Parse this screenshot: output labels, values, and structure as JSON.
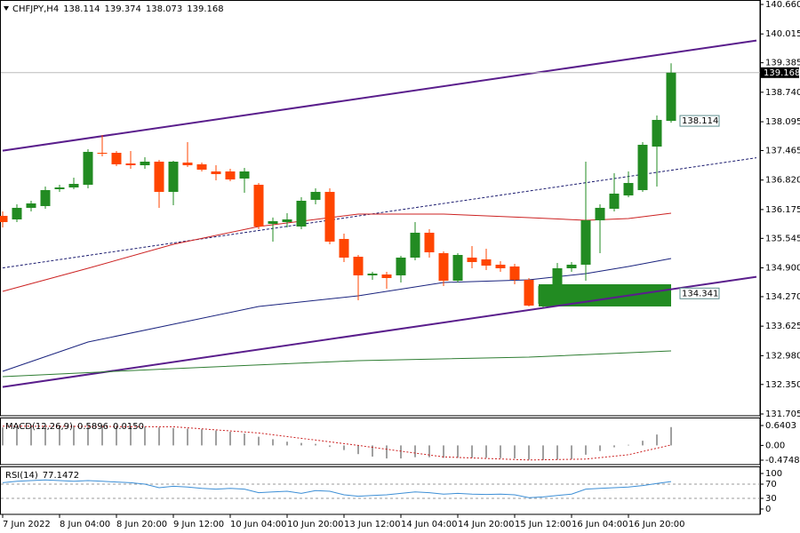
{
  "chart_data": [
    {
      "type": "candlestick",
      "title": "CHFJPY,H4",
      "categories": [
        "7 Jun 2022",
        null,
        null,
        null,
        "8 Jun 04:00",
        null,
        null,
        null,
        "8 Jun 20:00",
        null,
        null,
        null,
        "9 Jun 12:00",
        null,
        null,
        null,
        "10 Jun 04:00",
        null,
        null,
        null,
        "10 Jun 20:00",
        null,
        null,
        null,
        "13 Jun 12:00",
        null,
        null,
        null,
        "14 Jun 04:00",
        null,
        null,
        null,
        "14 Jun 20:00",
        null,
        null,
        null,
        "15 Jun 12:00",
        null,
        null,
        null,
        "16 Jun 04:00",
        null,
        null,
        null,
        "16 Jun 20:00",
        null,
        null,
        null
      ],
      "open": [
        136.037,
        135.959,
        136.212,
        136.251,
        136.62,
        136.658,
        136.717,
        137.416,
        137.416,
        137.183,
        137.144,
        137.222,
        136.561,
        137.202,
        137.164,
        137.008,
        137.008,
        136.853,
        136.717,
        135.862,
        135.901,
        135.804,
        136.387,
        136.561,
        135.532,
        135.143,
        134.736,
        134.755,
        134.736,
        135.124,
        135.668,
        135.221,
        134.619,
        135.124,
        135.085,
        134.969,
        134.93,
        134.638,
        134.114,
        134.541,
        134.891,
        134.969,
        135.94,
        136.192,
        136.484,
        136.6,
        137.552,
        138.114
      ],
      "high": [
        136.134,
        136.289,
        136.367,
        136.678,
        136.717,
        136.872,
        137.494,
        137.805,
        137.455,
        137.455,
        137.319,
        137.261,
        137.241,
        137.649,
        137.202,
        137.144,
        137.067,
        137.086,
        136.756,
        136.0,
        136.095,
        136.445,
        136.639,
        136.639,
        135.649,
        135.182,
        134.813,
        134.813,
        135.163,
        135.901,
        135.745,
        135.26,
        135.221,
        135.376,
        135.318,
        135.047,
        134.988,
        134.677,
        134.541,
        135.008,
        135.027,
        137.222,
        136.289,
        136.969,
        137.008,
        137.649,
        138.232,
        139.374
      ],
      "low": [
        135.784,
        135.901,
        136.134,
        136.192,
        136.561,
        136.62,
        136.639,
        137.338,
        137.125,
        137.067,
        137.067,
        136.212,
        136.27,
        137.105,
        137.008,
        136.814,
        136.795,
        136.542,
        135.745,
        135.474,
        135.784,
        135.745,
        136.289,
        135.415,
        135.027,
        134.192,
        134.638,
        134.444,
        134.58,
        135.066,
        135.124,
        134.502,
        134.58,
        134.891,
        134.852,
        134.813,
        134.541,
        134.056,
        134.036,
        134.444,
        134.813,
        134.619,
        135.221,
        136.134,
        136.445,
        136.561,
        136.678,
        138.073
      ],
      "close": [
        135.901,
        136.212,
        136.309,
        136.6,
        136.658,
        136.736,
        137.436,
        137.397,
        137.164,
        137.144,
        137.222,
        136.561,
        137.222,
        137.144,
        137.047,
        136.95,
        136.833,
        137.008,
        135.804,
        135.92,
        135.959,
        136.367,
        136.561,
        135.474,
        135.124,
        134.736,
        134.774,
        134.677,
        135.124,
        135.668,
        135.24,
        134.619,
        135.182,
        135.027,
        134.949,
        134.891,
        134.638,
        134.075,
        134.502,
        134.891,
        134.969,
        135.94,
        136.212,
        136.523,
        136.756,
        137.591,
        138.135,
        139.168
      ],
      "up_color": "#228b22",
      "down_color": "#ff4500",
      "ylim": [
        131.705,
        140.66
      ],
      "yticks": [
        {
          "value": 140.66,
          "label": "140.660"
        },
        140.015,
        139.385,
        {
          "value": 138.74,
          "label": "138.740"
        },
        138.095,
        137.465,
        {
          "value": 136.82,
          "label": "136.820"
        },
        136.175,
        135.545,
        {
          "value": 134.9,
          "label": "134.900"
        },
        {
          "value": 134.27,
          "label": "134.270"
        },
        133.625,
        {
          "value": 132.98,
          "label": "132.980"
        },
        {
          "value": 132.35,
          "label": "132.350"
        },
        131.705
      ],
      "grid": false,
      "overlays": [
        {
          "x": [
            0,
            53
          ],
          "values": [
            137.463,
            139.871
          ],
          "color": "#5a1e8c",
          "dash": false
        },
        {
          "x": [
            0,
            53
          ],
          "values": [
            132.296,
            134.704
          ],
          "color": "#5a1e8c",
          "dash": false
        },
        {
          "x": [
            0,
            53
          ],
          "values": [
            134.899,
            137.307
          ],
          "color": "#1a1a6e",
          "dash": true
        },
        {
          "x": [
            0,
            6,
            12,
            18,
            25,
            31,
            37,
            41,
            44,
            47
          ],
          "values": [
            134.386,
            134.891,
            135.415,
            135.804,
            136.076,
            136.076,
            135.998,
            135.94,
            135.979,
            136.095
          ],
          "color": "#cc2222",
          "dash": false
        },
        {
          "x": [
            0,
            6,
            12,
            18,
            25,
            31,
            37,
            41,
            44,
            47
          ],
          "values": [
            132.637,
            133.278,
            133.667,
            134.055,
            134.289,
            134.58,
            134.638,
            134.774,
            134.93,
            135.104
          ],
          "color": "#1a237e",
          "dash": false
        },
        {
          "x": [
            0,
            12,
            25,
            37,
            47
          ],
          "values": [
            132.521,
            132.696,
            132.871,
            132.948,
            133.084
          ],
          "color": "#2e7d32",
          "dash": false
        }
      ],
      "rectangles": [
        {
          "x": [
            38,
            47
          ],
          "values": [
            134.056,
            134.541
          ],
          "color": "#228b22"
        }
      ],
      "price_labels": [
        138.114,
        134.341
      ]
    },
    {
      "type": "macd",
      "title": "MACD(12,26,9)",
      "values": [
        0.58,
        0.6,
        0.62,
        0.63,
        0.64,
        0.64,
        0.62,
        0.63,
        0.63,
        0.62,
        0.6,
        0.58,
        0.56,
        0.54,
        0.52,
        0.48,
        0.44,
        0.38,
        0.28,
        0.2,
        0.12,
        0.08,
        0.05,
        -0.05,
        -0.15,
        -0.28,
        -0.36,
        -0.42,
        -0.42,
        -0.38,
        -0.38,
        -0.4,
        -0.4,
        -0.4,
        -0.4,
        -0.41,
        -0.42,
        -0.46,
        -0.47,
        -0.46,
        -0.44,
        -0.3,
        -0.18,
        -0.06,
        0.02,
        0.15,
        0.35,
        0.5896
      ],
      "color": "#a0a0a0",
      "signal": {
        "x": [
          0,
          12,
          18,
          25,
          31,
          37,
          41,
          44,
          47
        ],
        "values": [
          0.62,
          0.6,
          0.4,
          0,
          -0.37,
          -0.47,
          -0.44,
          -0.3,
          0.015
        ],
        "value_labels": [
          null,
          null,
          null,
          null,
          null,
          null,
          null,
          null,
          "0.0150"
        ],
        "color": "#cc2222"
      },
      "ylim": [
        -0.4748,
        0.6403
      ],
      "yticks": [
        0.6403,
        {
          "value": 0,
          "label": "0.00"
        },
        -0.4748
      ],
      "grid": false
    },
    {
      "type": "line",
      "title": "RSI(14)",
      "values": [
        74,
        78,
        80,
        82,
        80,
        78,
        80,
        78,
        76,
        74,
        70,
        60,
        64,
        62,
        58,
        56,
        58,
        56,
        46,
        48,
        50,
        44,
        52,
        50,
        40,
        36,
        38,
        40,
        44,
        48,
        46,
        42,
        44,
        42,
        41,
        42,
        40,
        32,
        34,
        38,
        42,
        56,
        58,
        60,
        62,
        66,
        72,
        77.1472
      ],
      "color": "#3d8fd6",
      "ylim": [
        0,
        100
      ],
      "yticks": [
        100,
        70,
        30,
        0
      ],
      "grid": true
    }
  ]
}
